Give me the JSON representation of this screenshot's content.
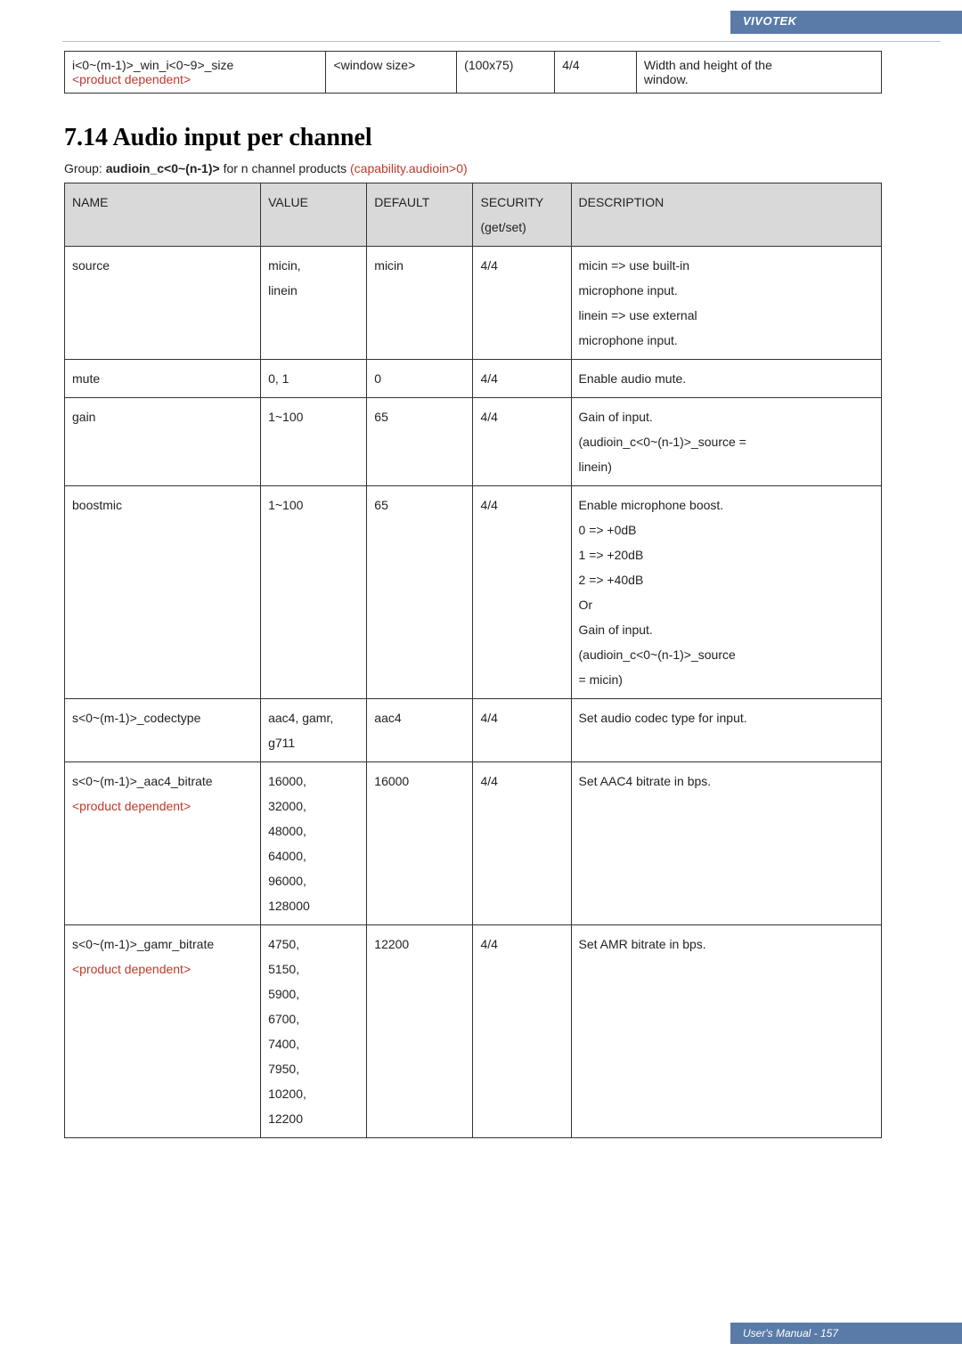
{
  "header": {
    "brand": "VIVOTEK"
  },
  "small_table": {
    "cells": {
      "name_l1": "i<0~(m-1)>_win_i<0~9>_size",
      "name_l2": "<product dependent>",
      "value": "<window size>",
      "default": "(100x75)",
      "security": "4/4",
      "desc_l1": "Width and height of the",
      "desc_l2": "window."
    }
  },
  "section": {
    "heading": "7.14 Audio input per channel",
    "group_prefix": "Group: ",
    "group_bold": "audioin_c<0~(n-1)>",
    "group_suffix": " for n channel products ",
    "group_red": "(capability.audioin>0)"
  },
  "main_table": {
    "headers": {
      "name": "NAME",
      "value": "VALUE",
      "default": "DEFAULT",
      "security_l1": "SECURITY",
      "security_l2": "(get/set)",
      "desc": "DESCRIPTION"
    },
    "rows": [
      {
        "name": "source",
        "value": "micin,\nlinein",
        "default": "micin",
        "security": "4/4",
        "desc": "micin => use built-in\nmicrophone input.\nlinein => use external\nmicrophone input."
      },
      {
        "name": "mute",
        "value": "0, 1",
        "default": "0",
        "security": "4/4",
        "desc": "Enable audio mute."
      },
      {
        "name": "gain",
        "value": "1~100",
        "default": "65",
        "security": "4/4",
        "desc": "Gain of input.\n(audioin_c<0~(n-1)>_source =\nlinein)"
      },
      {
        "name": "boostmic",
        "value": "1~100",
        "default": "65",
        "security": "4/4",
        "desc": "Enable microphone boost.\n0 => +0dB\n1 => +20dB\n2 => +40dB\nOr\nGain of input.\n (audioin_c<0~(n-1)>_source\n= micin)"
      },
      {
        "name": "s<0~(m-1)>_codectype",
        "value": "aac4, gamr,\ng711",
        "default": "aac4",
        "security": "4/4",
        "desc": "Set audio codec type for input."
      },
      {
        "name": "s<0~(m-1)>_aac4_bitrate\n<product dependent>",
        "name_red_line2": true,
        "value": "16000,\n32000,\n48000,\n64000,\n96000,\n128000",
        "default": "16000",
        "security": "4/4",
        "desc": "Set AAC4 bitrate in bps."
      },
      {
        "name": "s<0~(m-1)>_gamr_bitrate\n<product dependent>",
        "name_red_line2": true,
        "value": "4750,\n5150,\n5900,\n6700,\n7400,\n7950,\n10200,\n12200",
        "default": "12200",
        "security": "4/4",
        "desc": "Set AMR bitrate in bps."
      }
    ]
  },
  "footer": {
    "text": "User's Manual - 157"
  }
}
